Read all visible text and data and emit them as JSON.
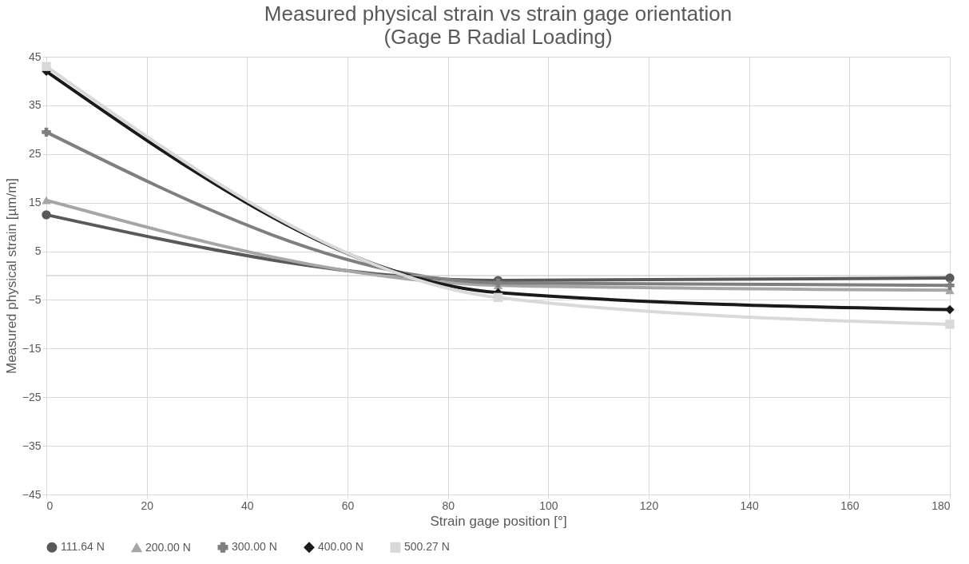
{
  "chart_data": {
    "type": "line",
    "title": "Measured physical strain vs strain gage orientation",
    "subtitle": "(Gage B Radial Loading)",
    "xlabel": "Strain gage position [°]",
    "ylabel": "Measured physical strain [µm/m]",
    "x": [
      0,
      90,
      180
    ],
    "series": [
      {
        "name": "111.64 N",
        "color": "#595959",
        "marker": "circle",
        "values": [
          12.5,
          -1,
          -0.5
        ]
      },
      {
        "name": "200.00 N",
        "color": "#a6a6a6",
        "marker": "triangle",
        "values": [
          15.5,
          -2,
          -3
        ]
      },
      {
        "name": "300.00 N",
        "color": "#7f7f7f",
        "marker": "cross",
        "values": [
          29.5,
          -1.5,
          -2
        ]
      },
      {
        "name": "400.00 N",
        "color": "#1a1a1a",
        "marker": "diamond",
        "values": [
          42,
          -3.5,
          -7
        ]
      },
      {
        "name": "500.27 N",
        "color": "#d9d9d9",
        "marker": "square",
        "values": [
          43,
          -4.5,
          -10
        ]
      }
    ],
    "xlim": [
      0,
      180
    ],
    "xticks": [
      0,
      20,
      40,
      60,
      80,
      100,
      120,
      140,
      160,
      180
    ],
    "ylim": [
      -45,
      45
    ],
    "yticks": [
      -45,
      -35,
      -25,
      -15,
      -5,
      5,
      15,
      25,
      35,
      45
    ],
    "grid": true,
    "legend": "bottom",
    "line_style": "solid"
  }
}
